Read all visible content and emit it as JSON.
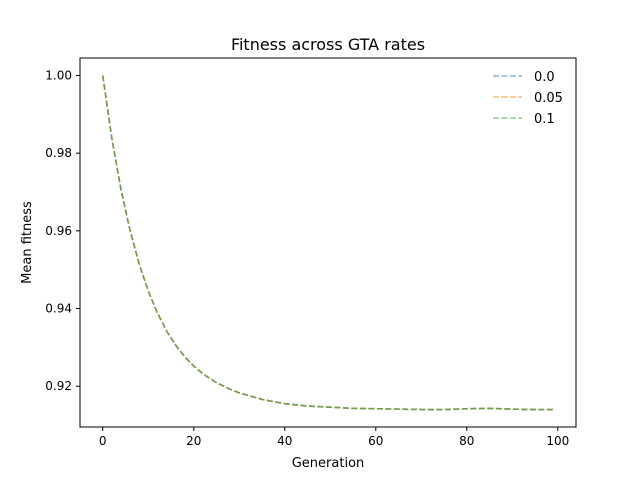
{
  "chart_data": {
    "type": "line",
    "title": "Fitness across GTA rates",
    "xlabel": "Generation",
    "ylabel": "Mean fitness",
    "xlim": [
      -5,
      104
    ],
    "ylim": [
      0.9095,
      1.0045
    ],
    "xticks": [
      0,
      20,
      40,
      60,
      80,
      100
    ],
    "yticks": [
      0.92,
      0.94,
      0.96,
      0.98,
      1.0
    ],
    "xtick_labels": [
      "0",
      "20",
      "40",
      "60",
      "80",
      "100"
    ],
    "ytick_labels": [
      "0.92",
      "0.94",
      "0.96",
      "0.98",
      "1.00"
    ],
    "grid": false,
    "legend_position": "top-right",
    "line_style": "dashed",
    "x": [
      0,
      2,
      4,
      6,
      8,
      10,
      12,
      14,
      16,
      18,
      20,
      22,
      25,
      28,
      30,
      35,
      40,
      45,
      50,
      55,
      60,
      65,
      70,
      75,
      80,
      85,
      90,
      95,
      99
    ],
    "series": [
      {
        "name": "0.0",
        "color": "#1f77b4",
        "values": [
          1.0,
          0.9838,
          0.9707,
          0.9601,
          0.9515,
          0.9445,
          0.9389,
          0.9343,
          0.9306,
          0.9276,
          0.9252,
          0.9232,
          0.9209,
          0.9192,
          0.9183,
          0.9166,
          0.9155,
          0.9149,
          0.9146,
          0.9143,
          0.9142,
          0.9141,
          0.914,
          0.914,
          0.9142,
          0.9143,
          0.9141,
          0.914,
          0.914
        ]
      },
      {
        "name": "0.05",
        "color": "#ff7f0e",
        "values": [
          1.0,
          0.9838,
          0.9707,
          0.9601,
          0.9515,
          0.9445,
          0.9389,
          0.9343,
          0.9306,
          0.9276,
          0.9252,
          0.9232,
          0.9209,
          0.9192,
          0.9183,
          0.9166,
          0.9155,
          0.9149,
          0.9146,
          0.9143,
          0.9142,
          0.9141,
          0.914,
          0.914,
          0.9142,
          0.9143,
          0.9141,
          0.914,
          0.914
        ]
      },
      {
        "name": "0.1",
        "color": "#2ca02c",
        "values": [
          1.0,
          0.9838,
          0.9707,
          0.9601,
          0.9515,
          0.9445,
          0.9389,
          0.9343,
          0.9306,
          0.9276,
          0.9252,
          0.9232,
          0.9209,
          0.9192,
          0.9183,
          0.9166,
          0.9155,
          0.9149,
          0.9146,
          0.9143,
          0.9142,
          0.9141,
          0.914,
          0.914,
          0.9142,
          0.9143,
          0.9141,
          0.914,
          0.914
        ]
      }
    ]
  }
}
